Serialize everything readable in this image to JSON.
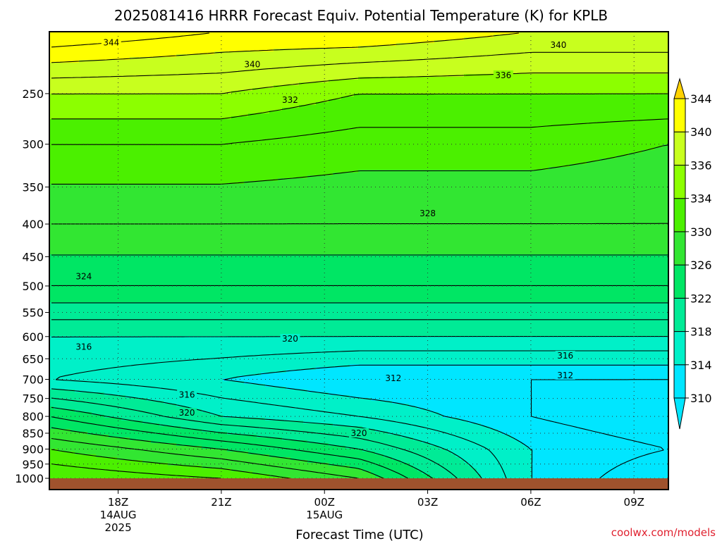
{
  "chart_data": {
    "type": "contour",
    "title": "2025081416 HRRR Forecast Equiv. Potential Temperature (K) for KPLB",
    "xlabel": "Forecast Time (UTC)",
    "ylabel": "",
    "y_axis": {
      "scale": "log-pressure",
      "units": "hPa",
      "ticks": [
        250,
        300,
        350,
        400,
        450,
        500,
        550,
        600,
        650,
        700,
        750,
        800,
        850,
        900,
        950,
        1000
      ],
      "range": [
        1000,
        200
      ]
    },
    "x_axis": {
      "range_hours": [
        0,
        18
      ],
      "ticks": [
        {
          "hour": 2,
          "label": "18Z",
          "sub1": "14AUG",
          "sub2": "2025"
        },
        {
          "hour": 5,
          "label": "21Z",
          "sub1": "",
          "sub2": ""
        },
        {
          "hour": 8,
          "label": "00Z",
          "sub1": "15AUG",
          "sub2": ""
        },
        {
          "hour": 11,
          "label": "03Z",
          "sub1": "",
          "sub2": ""
        },
        {
          "hour": 14,
          "label": "06Z",
          "sub1": "",
          "sub2": ""
        },
        {
          "hour": 17,
          "label": "09Z",
          "sub1": "",
          "sub2": ""
        }
      ]
    },
    "colorbar": {
      "levels": [
        310,
        314,
        318,
        322,
        326,
        330,
        334,
        336,
        340,
        344
      ],
      "colors": [
        "#00e6ff",
        "#00f0c8",
        "#00eb96",
        "#00e664",
        "#32e632",
        "#4bf000",
        "#8cff00",
        "#c8ff1e",
        "#ffff00",
        "#ffd200"
      ],
      "extend": "both"
    },
    "profiles": [
      {
        "hour": 0,
        "values": [
          {
            "p": 1000,
            "theta_e": 334
          },
          {
            "p": 900,
            "theta_e": 330
          },
          {
            "p": 800,
            "theta_e": 324
          },
          {
            "p": 700,
            "theta_e": 316
          },
          {
            "p": 600,
            "theta_e": 318
          },
          {
            "p": 500,
            "theta_e": 324
          },
          {
            "p": 400,
            "theta_e": 328
          },
          {
            "p": 300,
            "theta_e": 332
          },
          {
            "p": 250,
            "theta_e": 336
          },
          {
            "p": 200,
            "theta_e": 344
          }
        ]
      },
      {
        "hour": 5,
        "values": [
          {
            "p": 1000,
            "theta_e": 332
          },
          {
            "p": 900,
            "theta_e": 326
          },
          {
            "p": 800,
            "theta_e": 318
          },
          {
            "p": 700,
            "theta_e": 314
          },
          {
            "p": 600,
            "theta_e": 318
          },
          {
            "p": 500,
            "theta_e": 324
          },
          {
            "p": 400,
            "theta_e": 328
          },
          {
            "p": 300,
            "theta_e": 332
          },
          {
            "p": 250,
            "theta_e": 336
          },
          {
            "p": 200,
            "theta_e": 342
          }
        ]
      },
      {
        "hour": 9,
        "values": [
          {
            "p": 1000,
            "theta_e": 328
          },
          {
            "p": 900,
            "theta_e": 322
          },
          {
            "p": 800,
            "theta_e": 316
          },
          {
            "p": 700,
            "theta_e": 312
          },
          {
            "p": 600,
            "theta_e": 318
          },
          {
            "p": 500,
            "theta_e": 324
          },
          {
            "p": 400,
            "theta_e": 328
          },
          {
            "p": 300,
            "theta_e": 331
          },
          {
            "p": 250,
            "theta_e": 334
          },
          {
            "p": 200,
            "theta_e": 342
          }
        ]
      },
      {
        "hour": 14,
        "values": [
          {
            "p": 1000,
            "theta_e": 314
          },
          {
            "p": 900,
            "theta_e": 314
          },
          {
            "p": 800,
            "theta_e": 312
          },
          {
            "p": 700,
            "theta_e": 312
          },
          {
            "p": 600,
            "theta_e": 318
          },
          {
            "p": 500,
            "theta_e": 324
          },
          {
            "p": 400,
            "theta_e": 328
          },
          {
            "p": 300,
            "theta_e": 331
          },
          {
            "p": 250,
            "theta_e": 334
          },
          {
            "p": 200,
            "theta_e": 340
          }
        ]
      },
      {
        "hour": 18,
        "values": [
          {
            "p": 1000,
            "theta_e": 310
          },
          {
            "p": 900,
            "theta_e": 312
          },
          {
            "p": 800,
            "theta_e": 310
          },
          {
            "p": 700,
            "theta_e": 312
          },
          {
            "p": 600,
            "theta_e": 318
          },
          {
            "p": 500,
            "theta_e": 324
          },
          {
            "p": 400,
            "theta_e": 328
          },
          {
            "p": 300,
            "theta_e": 330
          },
          {
            "p": 250,
            "theta_e": 334
          },
          {
            "p": 200,
            "theta_e": 340
          }
        ]
      }
    ],
    "contour_labels": [
      {
        "text": "344",
        "hour": 1.8,
        "p": 208
      },
      {
        "text": "340",
        "hour": 5.9,
        "p": 225
      },
      {
        "text": "340",
        "hour": 14.8,
        "p": 210
      },
      {
        "text": "336",
        "hour": 13.2,
        "p": 234
      },
      {
        "text": "332",
        "hour": 7.0,
        "p": 256
      },
      {
        "text": "328",
        "hour": 11.0,
        "p": 385
      },
      {
        "text": "324",
        "hour": 1.0,
        "p": 483
      },
      {
        "text": "320",
        "hour": 7.0,
        "p": 605
      },
      {
        "text": "316",
        "hour": 1.0,
        "p": 623
      },
      {
        "text": "316",
        "hour": 15.0,
        "p": 643
      },
      {
        "text": "312",
        "hour": 10.0,
        "p": 697
      },
      {
        "text": "312",
        "hour": 15.0,
        "p": 690
      },
      {
        "text": "316",
        "hour": 4.0,
        "p": 740
      },
      {
        "text": "320",
        "hour": 4.0,
        "p": 790
      },
      {
        "text": "320",
        "hour": 9.0,
        "p": 850
      }
    ]
  },
  "credit": "coolwx.com/models"
}
